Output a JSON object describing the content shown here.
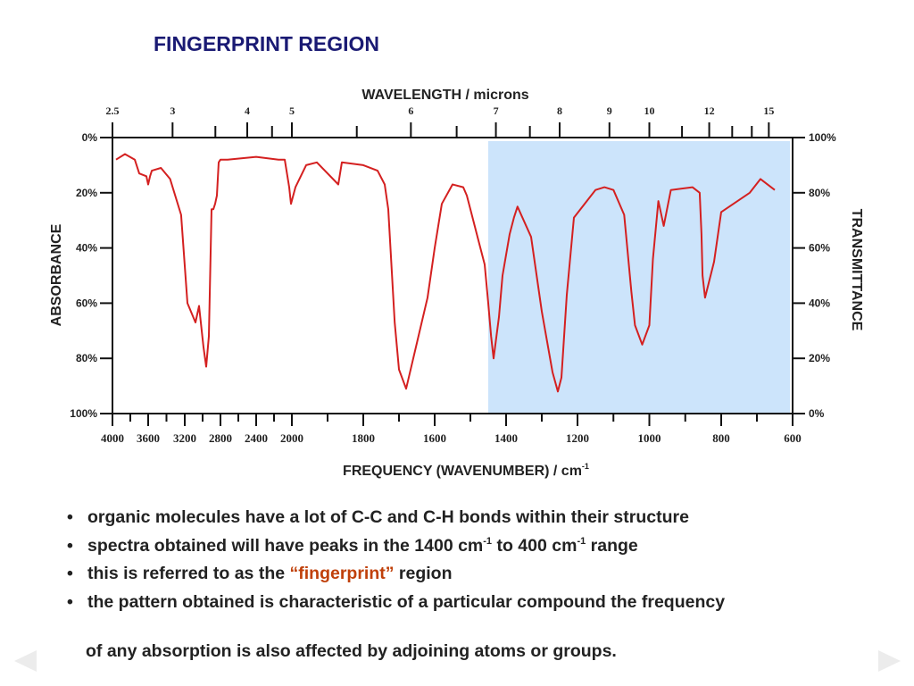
{
  "slide": {
    "title": "FINGERPRINT REGION",
    "bullets": [
      {
        "parts": [
          {
            "text": "organic molecules have a lot of C-C and C-H bonds within their structure"
          }
        ]
      },
      {
        "parts": [
          {
            "text": "spectra obtained will have peaks in the 1400 cm"
          },
          {
            "text": "-1",
            "sup": true
          },
          {
            "text": " to 400 cm"
          },
          {
            "text": "-1",
            "sup": true
          },
          {
            "text": " range"
          }
        ]
      },
      {
        "parts": [
          {
            "text": "this is referred to as the "
          },
          {
            "text": "“fingerprint”",
            "accent": true
          },
          {
            "text": " region"
          }
        ]
      },
      {
        "parts": [
          {
            "text": "the pattern obtained is characteristic of a particular compound the frequency"
          }
        ]
      }
    ],
    "continuation": "of any absorption is also affected by adjoining atoms or groups.",
    "bullet_symbol": "•"
  },
  "nav": {
    "prev_icon": "triangle-left",
    "next_icon": "triangle-right"
  },
  "colors": {
    "title": "#1a1a73",
    "accent": "#c0400a",
    "spectrum": "#d42020",
    "highlight": "#cce4fb",
    "nav": "#ececec",
    "text": "#222222"
  },
  "chart_data": {
    "type": "line",
    "title": "",
    "xlabel": "FREQUENCY (WAVENUMBER) / cm",
    "xlabel_sup": "-1",
    "top_label": "WAVELENGTH / microns",
    "ylabel_left": "ABSORBANCE",
    "ylabel_right": "TRANSMITTANCE",
    "x_ticks": [
      {
        "value": 4000,
        "label": "4000"
      },
      {
        "value": 3600,
        "label": "3600"
      },
      {
        "value": 3200,
        "label": "3200"
      },
      {
        "value": 2800,
        "label": "2800"
      },
      {
        "value": 2400,
        "label": "2400"
      },
      {
        "value": 2000,
        "label": "2000"
      },
      {
        "value": 1800,
        "label": "1800"
      },
      {
        "value": 1600,
        "label": "1600"
      },
      {
        "value": 1400,
        "label": "1400"
      },
      {
        "value": 1200,
        "label": "1200"
      },
      {
        "value": 1000,
        "label": "1000"
      },
      {
        "value": 800,
        "label": "800"
      },
      {
        "value": 600,
        "label": "600"
      }
    ],
    "x_minor_ticks": [
      3800,
      3400,
      3000,
      2600,
      2200,
      1900,
      1700,
      1500,
      1300,
      1100,
      900,
      700
    ],
    "top_ticks": [
      {
        "micron": 2.5,
        "label": "2.5"
      },
      {
        "micron": 3,
        "label": "3"
      },
      {
        "micron": 4,
        "label": "4"
      },
      {
        "micron": 5,
        "label": "5"
      },
      {
        "micron": 6,
        "label": "6"
      },
      {
        "micron": 7,
        "label": "7"
      },
      {
        "micron": 8,
        "label": "8"
      },
      {
        "micron": 9,
        "label": "9"
      },
      {
        "micron": 10,
        "label": "10"
      },
      {
        "micron": 12,
        "label": "12"
      },
      {
        "micron": 15,
        "label": "15"
      }
    ],
    "top_minor_ticks": [
      3.5,
      4.5,
      5.5,
      6.5,
      7.5,
      11,
      13,
      14
    ],
    "left_ticks": [
      {
        "transmittance": 100,
        "label": "0%"
      },
      {
        "transmittance": 80,
        "label": "20%"
      },
      {
        "transmittance": 60,
        "label": "40%"
      },
      {
        "transmittance": 40,
        "label": "60%"
      },
      {
        "transmittance": 20,
        "label": "80%"
      },
      {
        "transmittance": 0,
        "label": "100%"
      }
    ],
    "right_ticks": [
      {
        "transmittance": 100,
        "label": "100%"
      },
      {
        "transmittance": 80,
        "label": "80%"
      },
      {
        "transmittance": 60,
        "label": "60%"
      },
      {
        "transmittance": 40,
        "label": "40%"
      },
      {
        "transmittance": 20,
        "label": "20%"
      },
      {
        "transmittance": 0,
        "label": "0%"
      }
    ],
    "xlim": [
      4000,
      600
    ],
    "ylim": [
      0,
      100
    ],
    "highlight_region": {
      "from": 1450,
      "to": 600
    },
    "series": [
      {
        "x": [
          3960,
          3860,
          3750,
          3700,
          3620,
          3600,
          3580,
          3560,
          3460,
          3360,
          3240,
          3170,
          3080,
          3040,
          2990,
          2960,
          2930,
          2900,
          2880,
          2860,
          2840,
          2820,
          2800,
          2720,
          2400,
          2150,
          2080,
          2030,
          2010,
          1990,
          1960,
          1930,
          1870,
          1860,
          1800,
          1760,
          1740,
          1730,
          1712,
          1700,
          1680,
          1620,
          1600,
          1580,
          1550,
          1520,
          1510,
          1500,
          1480,
          1460,
          1450,
          1442,
          1435,
          1420,
          1410,
          1390,
          1378,
          1368,
          1330,
          1300,
          1270,
          1255,
          1245,
          1230,
          1210,
          1150,
          1125,
          1100,
          1070,
          1050,
          1040,
          1020,
          1000,
          990,
          975,
          960,
          940,
          880,
          860,
          855,
          852,
          845,
          820,
          800,
          720,
          690,
          650
        ],
        "y": [
          92,
          94,
          92,
          87,
          86,
          83,
          86,
          88,
          89,
          85,
          72,
          40,
          33,
          39,
          24,
          17,
          28,
          74,
          74,
          76,
          79,
          91,
          92,
          92,
          93,
          92,
          92,
          82,
          76,
          82,
          90,
          91,
          83,
          91,
          90,
          88,
          83,
          74,
          33,
          16,
          9,
          42,
          60,
          76,
          83,
          82,
          79,
          74,
          64,
          54,
          40,
          28,
          20,
          35,
          50,
          65,
          71,
          75,
          64,
          37,
          15,
          8,
          13,
          43,
          71,
          81,
          82,
          81,
          72,
          44,
          32,
          25,
          32,
          56,
          77,
          68,
          81,
          82,
          80,
          65,
          50,
          42,
          55,
          73,
          80,
          85,
          81
        ]
      }
    ]
  }
}
